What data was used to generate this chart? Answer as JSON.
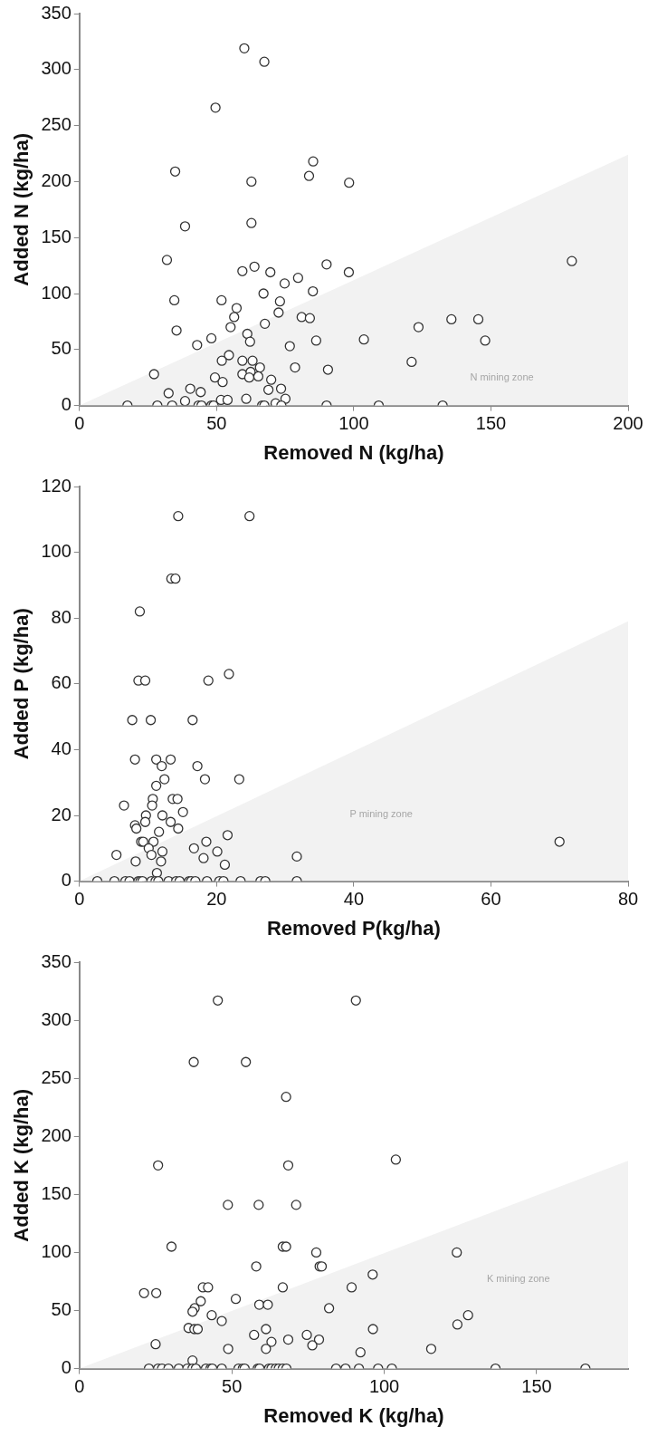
{
  "chart_data": [
    {
      "type": "scatter",
      "xlabel": "Removed N (kg/ha)",
      "ylabel": "Added N (kg/ha)",
      "xlim": [
        0,
        200
      ],
      "ylim": [
        0,
        350
      ],
      "xticks": [
        0,
        50,
        100,
        150,
        200
      ],
      "yticks": [
        0,
        50,
        100,
        150,
        200,
        250,
        300,
        350
      ],
      "grid": false,
      "legend": false,
      "annotations": [
        "N mining zone"
      ],
      "series": [
        {
          "type": "area",
          "color": "#f2f2f2",
          "x": [
            0,
            200
          ],
          "values": [
            0,
            224
          ]
        },
        {
          "marker": "circle",
          "color": "#333333",
          "x": [
            60.1,
            67.4,
            49.6,
            34.9,
            62.7,
            85.2,
            83.7,
            98.3,
            38.5,
            62.7,
            31.9,
            179.5,
            59.4,
            63.8,
            69.6,
            90.1,
            98.2,
            74.8,
            79.7,
            34.6,
            51.8,
            67.1,
            85.1,
            73.1,
            57.3,
            56.4,
            72.6,
            81.0,
            84.0,
            135.6,
            145.4,
            55.1,
            67.6,
            123.6,
            35.4,
            61.2,
            62.2,
            48.1,
            42.9,
            76.7,
            86.3,
            103.7,
            147.9,
            54.5,
            51.9,
            59.4,
            63.1,
            121.1,
            27.2,
            59.4,
            62.4,
            65.8,
            65.2,
            61.9,
            78.6,
            90.6,
            49.4,
            52.2,
            69.9,
            32.5,
            40.4,
            44.2,
            68.9,
            73.5,
            75.1,
            38.5,
            51.6,
            54.0,
            60.8,
            71.5,
            17.5,
            28.4,
            33.8,
            43.4,
            44.5,
            48.1,
            48.9,
            66.6,
            67.4,
            73.6,
            90.1,
            109.1,
            132.4
          ],
          "values": [
            319,
            307,
            266,
            209,
            200,
            218,
            205,
            199,
            160,
            163,
            130,
            129,
            120,
            124,
            119,
            126,
            119,
            109,
            114,
            94,
            94,
            100,
            102,
            93,
            87,
            79,
            83,
            79,
            78,
            77,
            77,
            70,
            73,
            70,
            67,
            64,
            57,
            60,
            54,
            53,
            58,
            59,
            58,
            45,
            40,
            40,
            40,
            39,
            28,
            28,
            30,
            34,
            26,
            25,
            34,
            32,
            25,
            21,
            23,
            11,
            15,
            12,
            14,
            15,
            6,
            4,
            5,
            5,
            6,
            2,
            0,
            0,
            0,
            0,
            0,
            0,
            0,
            0,
            0,
            0,
            0,
            0,
            0
          ]
        }
      ]
    },
    {
      "type": "scatter",
      "xlabel": "Removed P(kg/ha)",
      "ylabel": "Added P (kg/ha)",
      "xlim": [
        0,
        80
      ],
      "ylim": [
        0,
        120
      ],
      "xticks": [
        0,
        20,
        40,
        60,
        80
      ],
      "yticks": [
        0,
        20,
        40,
        60,
        80,
        100,
        120
      ],
      "grid": false,
      "legend": false,
      "annotations": [
        "P mining zone"
      ],
      "series": [
        {
          "type": "area",
          "color": "#f2f2f2",
          "x": [
            0,
            80
          ],
          "values": [
            0,
            79
          ]
        },
        {
          "marker": "circle",
          "color": "#333333",
          "x": [
            14.4,
            24.8,
            13.4,
            14.0,
            8.8,
            8.6,
            9.6,
            18.8,
            21.8,
            7.7,
            10.4,
            16.5,
            8.1,
            11.2,
            13.3,
            12.0,
            17.2,
            12.4,
            11.2,
            18.3,
            23.3,
            6.5,
            10.7,
            10.6,
            13.6,
            14.3,
            9.7,
            12.1,
            15.1,
            8.1,
            8.3,
            9.6,
            13.3,
            14.4,
            9.0,
            9.3,
            10.8,
            11.6,
            5.4,
            8.2,
            10.1,
            10.5,
            12.1,
            11.9,
            11.3,
            16.7,
            18.5,
            18.1,
            20.1,
            21.6,
            21.2,
            31.7,
            70.0,
            2.6,
            5.1,
            6.7,
            7.3,
            8.6,
            8.9,
            9.2,
            10.5,
            11.1,
            11.5,
            13.0,
            14.1,
            14.6,
            16.0,
            16.3,
            16.9,
            18.6,
            20.4,
            21.0,
            23.5,
            26.4,
            27.1,
            31.7
          ],
          "values": [
            111,
            111,
            92,
            92,
            82,
            61,
            61,
            61,
            63,
            49,
            49,
            49,
            37,
            37,
            37,
            35,
            35,
            31,
            29,
            31,
            31,
            23,
            25,
            23,
            25,
            25,
            20,
            20,
            21,
            17,
            16,
            18,
            18,
            16,
            12,
            12,
            12,
            15,
            8,
            6,
            10,
            8,
            9,
            6,
            2.5,
            10,
            12,
            7,
            9,
            14,
            5,
            7.5,
            12,
            0,
            0,
            0,
            0,
            0,
            0,
            0,
            0,
            0,
            0,
            0,
            0,
            0,
            0,
            0,
            0,
            0,
            0,
            0,
            0,
            0,
            0,
            0
          ]
        }
      ]
    },
    {
      "type": "scatter",
      "xlabel": "Removed K (kg/ha)",
      "ylabel": "Added K (kg/ha)",
      "xlim": [
        0,
        180
      ],
      "ylim": [
        0,
        350
      ],
      "xticks": [
        0,
        50,
        100,
        150
      ],
      "yticks": [
        0,
        50,
        100,
        150,
        200,
        250,
        300,
        350
      ],
      "grid": false,
      "legend": false,
      "annotations": [
        "K mining zone"
      ],
      "series": [
        {
          "type": "area",
          "color": "#f2f2f2",
          "x": [
            0,
            180
          ],
          "values": [
            0,
            179
          ]
        },
        {
          "marker": "circle",
          "color": "#333333",
          "x": [
            45.4,
            90.7,
            37.5,
            54.6,
            67.8,
            25.8,
            68.5,
            103.8,
            48.7,
            58.8,
            71.1,
            30.2,
            66.7,
            67.8,
            77.7,
            123.8,
            58.0,
            78.8,
            79.5,
            96.2,
            21.2,
            25.2,
            40.5,
            42.2,
            66.7,
            89.3,
            39.8,
            37.8,
            37.1,
            51.3,
            59.0,
            61.8,
            81.9,
            43.4,
            46.7,
            127.5,
            124.0,
            35.8,
            37.7,
            38.8,
            61.2,
            96.3,
            57.3,
            74.6,
            63.0,
            68.5,
            78.6,
            76.4,
            25.0,
            48.8,
            61.2,
            92.2,
            115.4,
            37.1,
            22.8,
            25.8,
            27.1,
            29.2,
            32.6,
            35.4,
            37.1,
            38.2,
            41.5,
            43.0,
            43.6,
            46.7,
            52.2,
            53.6,
            54.2,
            58.5,
            59.1,
            62.2,
            63.0,
            64.4,
            65.4,
            66.7,
            67.9,
            84.2,
            87.3,
            91.7,
            98.0,
            102.5,
            136.5,
            166.0
          ],
          "values": [
            317,
            317,
            264,
            264,
            234,
            175,
            175,
            180,
            141,
            141,
            141,
            105,
            105,
            105,
            100,
            100,
            88,
            88,
            88,
            81,
            65,
            65,
            70,
            70,
            70,
            70,
            58,
            52,
            49,
            60,
            55,
            55,
            52,
            46,
            41,
            46,
            38,
            35,
            34,
            34,
            34,
            34,
            29,
            29,
            23,
            25,
            25,
            20,
            21,
            17,
            17,
            14,
            17,
            7,
            0,
            0,
            0,
            0,
            0,
            0,
            0,
            0,
            0,
            0,
            0,
            0,
            0,
            0,
            0,
            0,
            0,
            0,
            0,
            0,
            0,
            0,
            0,
            0,
            0,
            0,
            0,
            0,
            0,
            0
          ]
        }
      ]
    }
  ]
}
